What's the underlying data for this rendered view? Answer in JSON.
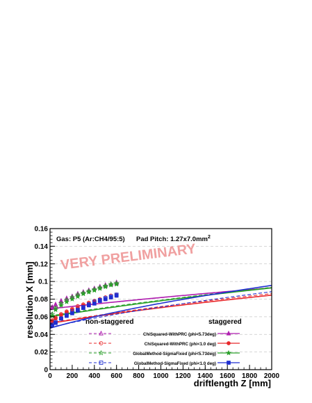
{
  "chart_data": {
    "type": "scatter",
    "title": "",
    "xlabel": "driftlength Z [mm]",
    "ylabel": "resolution X [mm]",
    "xlim": [
      0,
      2000
    ],
    "ylim": [
      0,
      0.16
    ],
    "x_ticks": [
      0,
      200,
      400,
      600,
      800,
      1000,
      1200,
      1400,
      1600,
      1800,
      2000
    ],
    "y_ticks": [
      0,
      0.02,
      0.04,
      0.06,
      0.08,
      0.1,
      0.12,
      0.14,
      0.16
    ],
    "x_tick_labels": [
      "0",
      "200",
      "400",
      "600",
      "800",
      "1000",
      "1200",
      "1400",
      "1600",
      "1800",
      "2000"
    ],
    "y_tick_labels": [
      "0",
      "0.02",
      "0.04",
      "0.06",
      "0.08",
      "0.1",
      "0.12",
      "0.14",
      "0.16"
    ],
    "grid": "horizontal dashed",
    "annotations": {
      "gas": "Gas: P5 (Ar:CH4/95:5)",
      "pad_pitch": "Pad Pitch: 1.27x7.0mm",
      "pad_pitch_sup": "2",
      "watermark": "VERY PRELIMINARY"
    },
    "legend": {
      "placement": "bottom-center",
      "header_left": "non-staggered",
      "header_right": "staggered",
      "entries": [
        "ChiSquared-WithPRC (phi<5.73deg)",
        "ChiSquared-WithPRC (phi<1.0 deg)",
        "GlobalMethod-SigmaFixed (phi<5.73deg)",
        "GlobalMethod-SigmaFixed (phi<1.0 deg)"
      ]
    },
    "x": [
      20,
      50,
      100,
      150,
      200,
      250,
      300,
      350,
      400,
      450,
      500,
      550,
      600
    ],
    "series": [
      {
        "name": "ChiSquared-WithPRC (phi<5.73deg)",
        "color": "#b01fb0",
        "marker": "triangle",
        "nonstaggered": [
          0.07,
          0.073,
          0.077,
          0.08,
          0.083,
          0.086,
          0.088,
          0.09,
          0.092,
          0.094,
          0.095,
          0.097,
          0.098
        ],
        "staggered": [
          0.071,
          0.074,
          0.078,
          0.081,
          0.083,
          0.086,
          0.088,
          0.09,
          0.092,
          0.094,
          0.096,
          0.097,
          0.099
        ],
        "fit_nonstaggered": {
          "a": 0.0688,
          "b": 0.00139
        },
        "fit_staggered": {
          "a": 0.069,
          "b": 0.00139
        }
      },
      {
        "name": "ChiSquared-WithPRC (phi<1.0 deg)",
        "color": "#e8272a",
        "marker": "circle",
        "nonstaggered": [
          0.056,
          0.059,
          0.063,
          0.066,
          0.069,
          0.072,
          0.074,
          0.076,
          0.078,
          0.08,
          0.082,
          0.084,
          0.085
        ],
        "staggered": [
          0.055,
          0.058,
          0.062,
          0.065,
          0.068,
          0.07,
          0.073,
          0.075,
          0.077,
          0.079,
          0.08,
          0.082,
          0.084
        ],
        "fit_nonstaggered": {
          "a": 0.053,
          "b": 0.00152
        },
        "fit_staggered": {
          "a": 0.0525,
          "b": 0.00148
        }
      },
      {
        "name": "GlobalMethod-SigmaFixed (phi<5.73deg)",
        "color": "#2aa02a",
        "marker": "star",
        "nonstaggered": [
          0.063,
          0.07,
          0.075,
          0.079,
          0.082,
          0.085,
          0.087,
          0.089,
          0.091,
          0.093,
          0.095,
          0.097,
          0.098
        ],
        "staggered": [
          0.061,
          0.068,
          0.073,
          0.077,
          0.08,
          0.083,
          0.086,
          0.088,
          0.09,
          0.092,
          0.094,
          0.096,
          0.097
        ],
        "fit_nonstaggered": {
          "a": 0.061,
          "b": 0.00158
        },
        "fit_staggered": {
          "a": 0.06,
          "b": 0.00158
        }
      },
      {
        "name": "GlobalMethod-SigmaFixed (phi<1.0 deg)",
        "color": "#1f2fd0",
        "marker": "square",
        "nonstaggered": [
          0.051,
          0.054,
          0.058,
          0.062,
          0.066,
          0.068,
          0.071,
          0.074,
          0.077,
          0.079,
          0.081,
          0.083,
          0.085
        ],
        "staggered": [
          0.05,
          0.053,
          0.058,
          0.061,
          0.064,
          0.067,
          0.07,
          0.073,
          0.075,
          0.078,
          0.08,
          0.082,
          0.084
        ],
        "fit_nonstaggered": {
          "a": 0.048,
          "b": 0.00166
        },
        "fit_staggered": {
          "a": 0.047,
          "b": 0.00186
        }
      }
    ]
  }
}
